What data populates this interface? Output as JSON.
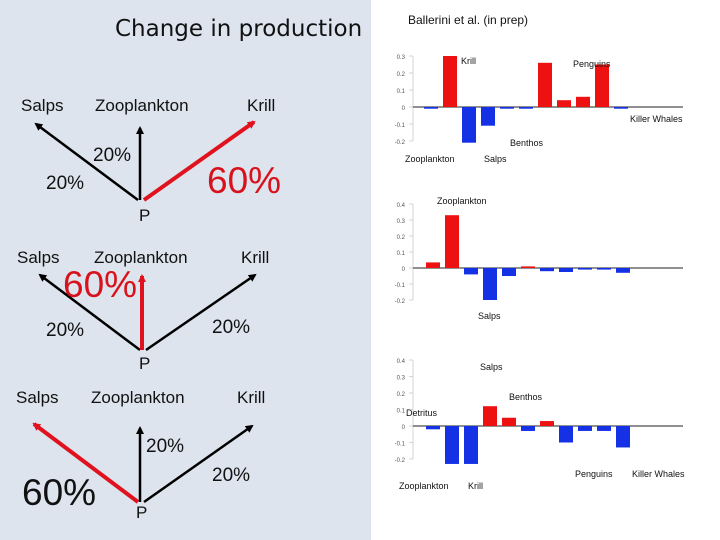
{
  "left": {
    "title": "Change in production",
    "diagrams": [
      {
        "labels": {
          "salps": "Salps",
          "zooplankton": "Zooplankton",
          "krill": "Krill",
          "p": "P"
        },
        "pct": {
          "zoo": "20%",
          "salps": "20%",
          "krill": "60%"
        }
      },
      {
        "labels": {
          "salps": "Salps",
          "zooplankton": "Zooplankton",
          "krill": "Krill",
          "p": "P"
        },
        "pct": {
          "zoo": "60%",
          "salps": "20%",
          "krill": "20%"
        }
      },
      {
        "labels": {
          "salps": "Salps",
          "zooplankton": "Zooplankton",
          "krill": "Krill",
          "p": "P"
        },
        "pct": {
          "zoo": "20%",
          "salps": "60%",
          "krill": "20%"
        }
      }
    ],
    "colors": {
      "red_arrow": "#e0121e",
      "black_arrow": "#000000"
    }
  },
  "citation": "Ballerini et al. (in prep)",
  "chart_data": [
    {
      "type": "bar",
      "title": "",
      "ylim": [
        -0.2,
        0.3
      ],
      "yticks": [
        "0.3",
        "0.2",
        "0.1",
        "0",
        "-0.1",
        "-0.2"
      ],
      "values": [
        -0.01,
        0.3,
        -0.21,
        -0.11,
        -0.01,
        -0.01,
        0.26,
        0.04,
        0.06,
        0.25,
        -0.01
      ],
      "colors": [
        "blue",
        "red",
        "blue",
        "blue",
        "blue",
        "blue",
        "red",
        "red",
        "red",
        "red",
        "blue"
      ],
      "annotations": [
        "Krill",
        "Penguins",
        "Killer Whales",
        "Benthos",
        "Zooplankton",
        "Salps"
      ]
    },
    {
      "type": "bar",
      "title": "",
      "ylim": [
        -0.2,
        0.4
      ],
      "yticks": [
        "0.4",
        "0.3",
        "0.2",
        "0.1",
        "0",
        "-0.1",
        "-0.2"
      ],
      "values": [
        0.035,
        0.33,
        -0.04,
        -0.2,
        -0.05,
        0.01,
        -0.02,
        -0.025,
        -0.01,
        -0.01,
        -0.03
      ],
      "colors": [
        "red",
        "red",
        "blue",
        "blue",
        "blue",
        "red",
        "blue",
        "blue",
        "blue",
        "blue",
        "blue"
      ],
      "annotations": [
        "Zooplankton",
        "Salps"
      ]
    },
    {
      "type": "bar",
      "title": "",
      "ylim": [
        -0.2,
        0.4
      ],
      "yticks": [
        "0.4",
        "0.3",
        "0.2",
        "0.1",
        "0",
        "-0.1",
        "-0.2"
      ],
      "values": [
        -0.02,
        -0.23,
        -0.23,
        0.12,
        0.05,
        -0.03,
        0.03,
        -0.1,
        -0.03,
        -0.03,
        -0.13
      ],
      "colors": [
        "blue",
        "blue",
        "blue",
        "red",
        "red",
        "blue",
        "red",
        "blue",
        "blue",
        "blue",
        "blue"
      ],
      "annotations": [
        "Salps",
        "Benthos",
        "Detritus",
        "Zooplankton",
        "Krill",
        "Penguins",
        "Killer Whales"
      ]
    }
  ]
}
